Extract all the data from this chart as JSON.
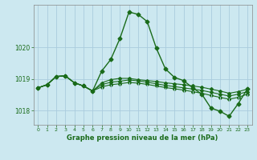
{
  "background_color": "#cce8f0",
  "grid_color": "#aaccdd",
  "line_color": "#1a6b1a",
  "title": "Graphe pression niveau de la mer (hPa)",
  "xlim": [
    -0.5,
    23.5
  ],
  "ylim": [
    1017.55,
    1021.35
  ],
  "yticks": [
    1018,
    1019,
    1020
  ],
  "xticks": [
    0,
    1,
    2,
    3,
    4,
    5,
    6,
    7,
    8,
    9,
    10,
    11,
    12,
    13,
    14,
    15,
    16,
    17,
    18,
    19,
    20,
    21,
    22,
    23
  ],
  "series": [
    [
      1018.72,
      1018.82,
      1019.08,
      1019.1,
      1018.88,
      1018.78,
      1018.62,
      1019.25,
      1019.62,
      1020.28,
      1021.12,
      1021.05,
      1020.82,
      1019.98,
      1019.32,
      1019.05,
      1018.95,
      1018.72,
      1018.52,
      1018.08,
      1017.98,
      1017.82,
      1018.22,
      1018.68
    ],
    [
      1018.72,
      1018.82,
      1019.08,
      1019.1,
      1018.88,
      1018.78,
      1018.62,
      1018.88,
      1018.98,
      1019.02,
      1019.02,
      1018.98,
      1018.95,
      1018.92,
      1018.88,
      1018.85,
      1018.82,
      1018.78,
      1018.74,
      1018.68,
      1018.62,
      1018.55,
      1018.6,
      1018.68
    ],
    [
      1018.72,
      1018.82,
      1019.08,
      1019.1,
      1018.88,
      1018.78,
      1018.62,
      1018.82,
      1018.9,
      1018.93,
      1018.97,
      1018.94,
      1018.9,
      1018.85,
      1018.8,
      1018.76,
      1018.72,
      1018.68,
      1018.64,
      1018.58,
      1018.52,
      1018.46,
      1018.52,
      1018.6
    ],
    [
      1018.72,
      1018.82,
      1019.08,
      1019.1,
      1018.88,
      1018.78,
      1018.62,
      1018.75,
      1018.82,
      1018.85,
      1018.89,
      1018.87,
      1018.83,
      1018.78,
      1018.73,
      1018.69,
      1018.65,
      1018.6,
      1018.55,
      1018.48,
      1018.42,
      1018.36,
      1018.42,
      1018.52
    ]
  ]
}
